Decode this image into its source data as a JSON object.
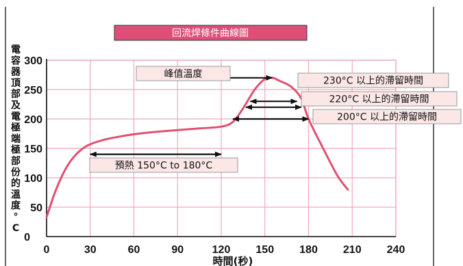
{
  "chart_data": {
    "type": "line",
    "title": "回流焊條件曲線圖",
    "ylabel": "電容器頂部及電極端極部份的溫度°C",
    "xlabel": "時間(秒)",
    "xlim": [
      0,
      240
    ],
    "ylim": [
      0,
      300
    ],
    "x_ticks": [
      0,
      30,
      60,
      90,
      120,
      150,
      180,
      210,
      240
    ],
    "y_ticks": [
      0,
      50,
      100,
      150,
      200,
      250,
      300
    ],
    "grid": true,
    "series": [
      {
        "x": [
          0,
          5,
          10,
          15,
          20,
          25,
          30,
          40,
          50,
          60,
          75,
          90,
          105,
          120,
          128,
          135,
          143,
          150,
          155,
          160,
          168,
          175,
          180,
          190,
          200,
          207
        ],
        "y": [
          33,
          70,
          100,
          123,
          139,
          150,
          157,
          165,
          170,
          174,
          178,
          181,
          184,
          187,
          195,
          218,
          250,
          268,
          270,
          265,
          255,
          235,
          200,
          150,
          103,
          80
        ],
        "color": "#e05070"
      }
    ],
    "annotations": [
      {
        "text": "峰值溫度",
        "arrow_x": [
          105,
          155
        ],
        "arrow_y": 270,
        "arrowheads": "end"
      },
      {
        "text": "230°C 以上的滯留時間",
        "arrow_x": [
          140,
          172
        ],
        "arrow_y": 230,
        "arrowheads": "both"
      },
      {
        "text": "220°C 以上的滯留時間",
        "arrow_x": [
          137,
          175
        ],
        "arrow_y": 220,
        "arrowheads": "both"
      },
      {
        "text": "200°C 以上的滯留時間",
        "arrow_x": [
          128,
          180
        ],
        "arrow_y": 200,
        "arrowheads": "both"
      },
      {
        "text": "預熱 150°C to 180°C",
        "arrow_x": [
          30,
          120
        ],
        "arrow_y": 140,
        "arrowheads": "both"
      }
    ],
    "colors": {
      "curve": "#e05070",
      "grid": "#f0a8b8",
      "title_bg": "#dd4f76",
      "box_bg": "#fbe7e6"
    }
  }
}
